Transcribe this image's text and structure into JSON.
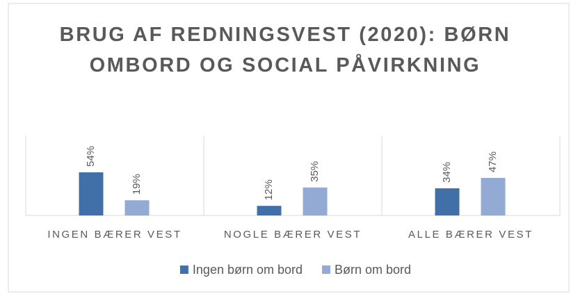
{
  "chart_data": {
    "type": "bar",
    "title": "BRUG AF REDNINGSVEST (2020): BØRN OMBORD OG SOCIAL PÅVIRKNING",
    "categories": [
      "INGEN BÆRER VEST",
      "NOGLE BÆRER VEST",
      "ALLE BÆRER VEST"
    ],
    "series": [
      {
        "name": "Ingen børn om bord",
        "color": "#4170a8",
        "values": [
          54,
          12,
          34
        ],
        "value_labels": [
          "54%",
          "12%",
          "34%"
        ]
      },
      {
        "name": "Børn om bord",
        "color": "#93aad5",
        "values": [
          19,
          35,
          47
        ],
        "value_labels": [
          "19%",
          "35%",
          "47%"
        ]
      }
    ],
    "ylim": [
      0,
      100
    ],
    "legend": "bottom"
  }
}
